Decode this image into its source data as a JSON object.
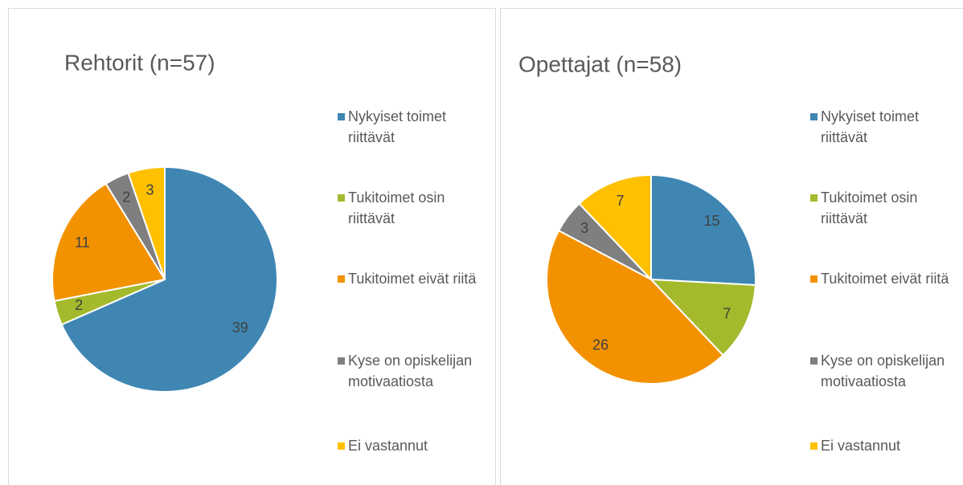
{
  "chart_data": [
    {
      "type": "pie",
      "title": "Rehtorit (n=57)",
      "categories": [
        "Nykyiset toimet riittävät",
        "Tukitoimet osin riittävät",
        "Tukitoimet eivät riitä",
        "Kyse on opiskelijan motivaatiosta",
        "Ei vastannut"
      ],
      "values": [
        39,
        2,
        11,
        2,
        3
      ],
      "colors": [
        "#3f86b3",
        "#a4b92c",
        "#f39200",
        "#7f7f7f",
        "#ffc000"
      ]
    },
    {
      "type": "pie",
      "title": "Opettajat (n=58)",
      "categories": [
        "Nykyiset toimet riittävät",
        "Tukitoimet osin riittävät",
        "Tukitoimet eivät riitä",
        "Kyse on opiskelijan motivaatiosta",
        "Ei vastannut"
      ],
      "values": [
        15,
        7,
        26,
        3,
        7
      ],
      "colors": [
        "#3f86b3",
        "#a4b92c",
        "#f39200",
        "#7f7f7f",
        "#ffc000"
      ]
    }
  ]
}
